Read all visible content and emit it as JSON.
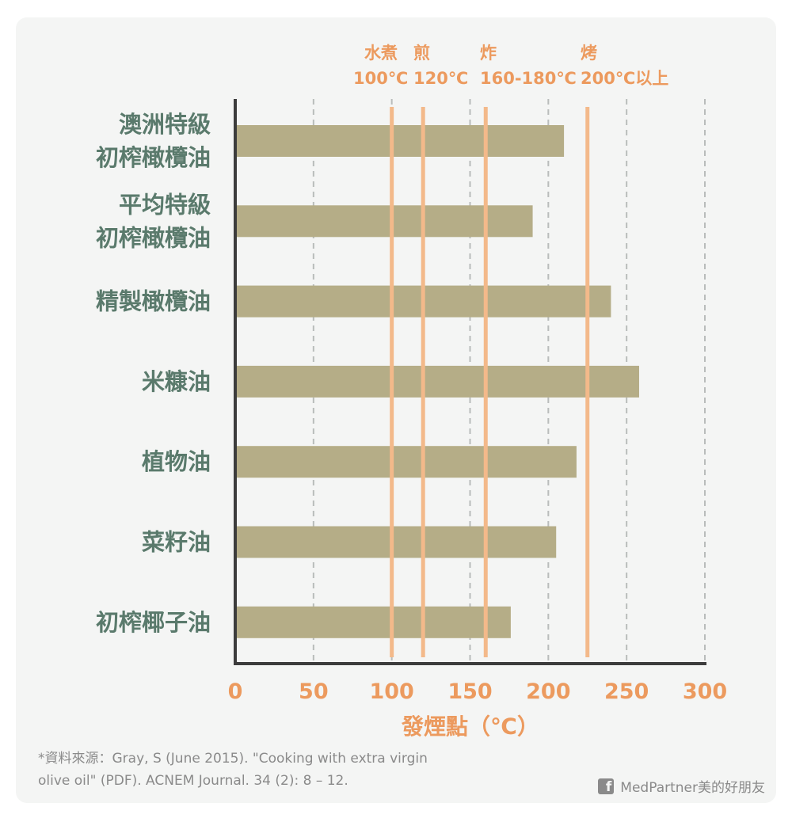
{
  "chart_data": {
    "type": "bar",
    "orientation": "horizontal",
    "categories": [
      [
        "澳洲特級",
        "初榨橄欖油"
      ],
      [
        "平均特級",
        "初榨橄欖油"
      ],
      [
        "精製橄欖油"
      ],
      [
        "米糠油"
      ],
      [
        "植物油"
      ],
      [
        "菜籽油"
      ],
      [
        "初榨椰子油"
      ]
    ],
    "values": [
      210,
      190,
      240,
      258,
      218,
      205,
      176
    ],
    "xlabel": "發煙點（℃）",
    "xlim": [
      0,
      300
    ],
    "xticks": [
      "0",
      "50",
      "100",
      "150",
      "200",
      "250",
      "300"
    ],
    "xtick_values": [
      0,
      50,
      100,
      150,
      200,
      250,
      300
    ],
    "grid": "vertical dashed",
    "bar_color": "#b5ad87",
    "reference_lines": [
      {
        "value": 100,
        "method": "水煮",
        "temp": "100℃"
      },
      {
        "value": 120,
        "method": "煎",
        "temp": "120℃"
      },
      {
        "value": 160,
        "method": "炸",
        "temp": "160-180℃"
      },
      {
        "value": 225,
        "method": "烤",
        "temp": "200℃以上"
      }
    ],
    "reference_line_color": "#f3b98a"
  },
  "footer": {
    "source_line1": "*資料來源：Gray, S (June 2015). \"Cooking with extra virgin",
    "source_line2": "olive oil\" (PDF). ACNEM Journal. 34 (2): 8 – 12.",
    "brand_icon": "facebook-icon",
    "brand": "MedPartner美的好朋友"
  }
}
